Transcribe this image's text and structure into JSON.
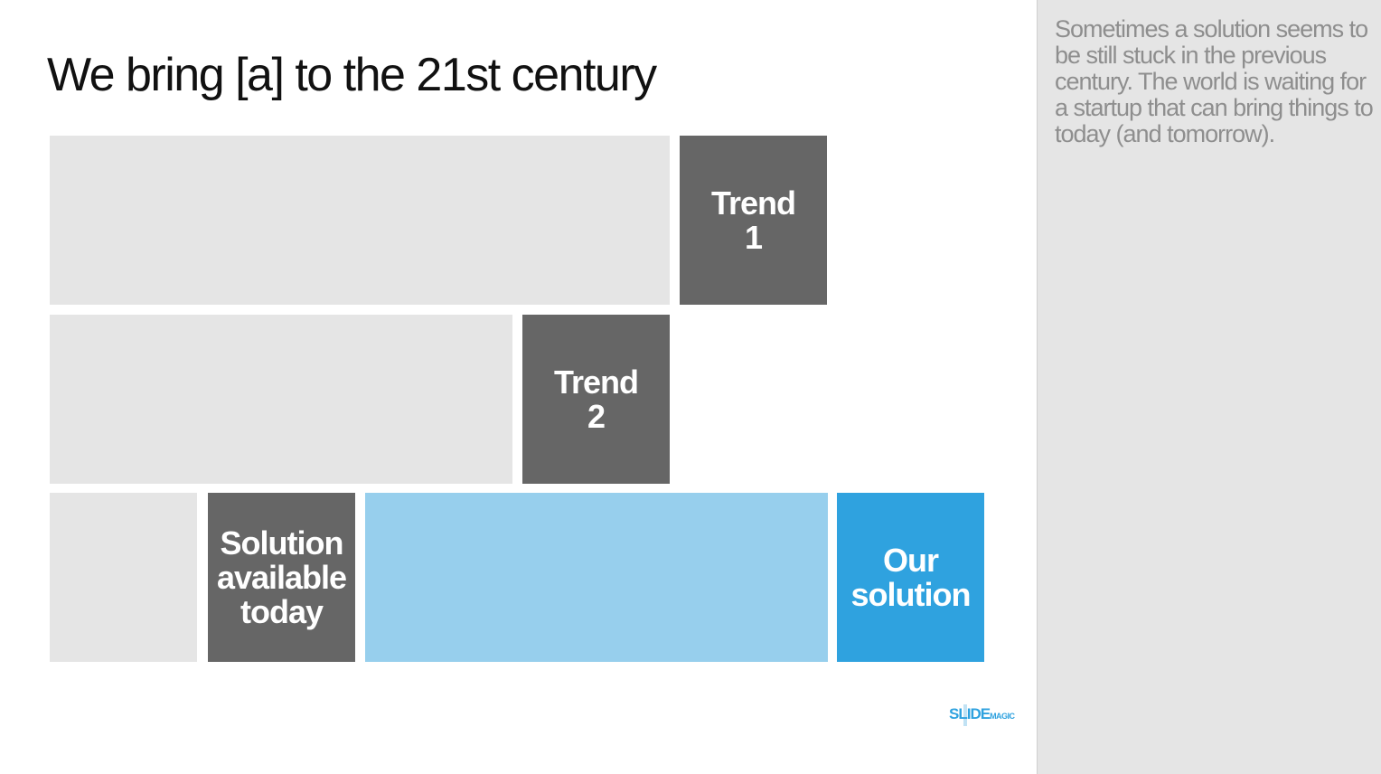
{
  "slide": {
    "title": "We bring [a] to the 21st century"
  },
  "blocks": {
    "trend1": {
      "label": "Trend\n1"
    },
    "trend2": {
      "label": "Trend\n2"
    },
    "solution_available": {
      "label": "Solution\navailable\ntoday"
    },
    "our_solution": {
      "label": "Our\nsolution"
    }
  },
  "notes": {
    "text": "Sometimes a solution seems to be still stuck in the previous century. The world is waiting for a startup that can bring things to today (and tomorrow)."
  },
  "logo": {
    "text_main": "SLIDE",
    "text_small": "MAGIC"
  },
  "colors": {
    "light_gray": "#e5e5e5",
    "dark_gray": "#666666",
    "light_blue": "#97cfed",
    "blue": "#2fa2df"
  }
}
